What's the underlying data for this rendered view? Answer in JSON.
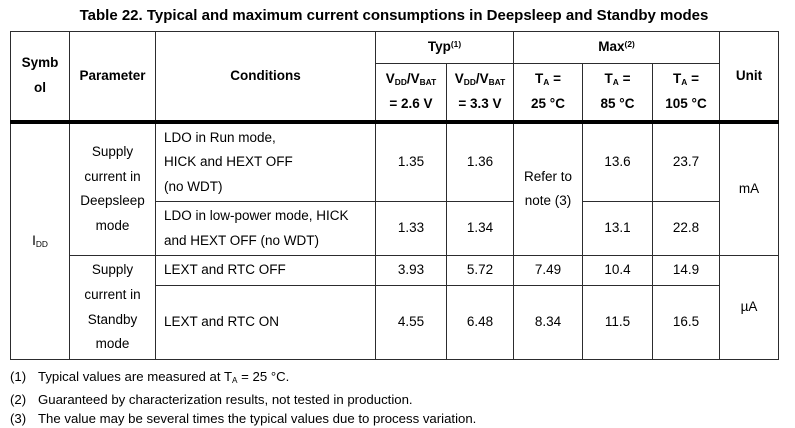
{
  "page": {
    "title": "Table 22. Typical and maximum current consumptions in Deepsleep and Standby modes"
  },
  "table": {
    "header": {
      "symbol": "Symb\nol",
      "parameter": "Parameter",
      "conditions": "Conditions",
      "typ_group": "Typ^{(1)}",
      "max_group": "Max^{(2)}",
      "unit": "Unit",
      "typ_sub": [
        "V_{DD}/V_{BAT}\n= 2.6 V",
        "V_{DD}/V_{BAT}\n= 3.3 V"
      ],
      "max_sub": [
        "T_{A} =\n25 °C",
        "T_{A} =\n85 °C",
        "T_{A} =\n105 °C"
      ]
    },
    "body": {
      "symbol": "I_{DD}",
      "deepsleep": {
        "parameter": "Supply\ncurrent in\nDeepsleep\nmode",
        "unit": "mA",
        "max_25c_note": "Refer to\nnote (3)",
        "row_run": {
          "conditions": "LDO in Run mode,\nHICK and HEXT OFF\n(no WDT)",
          "typ_2v6": "1.35",
          "typ_3v3": "1.36",
          "max_85c": "13.6",
          "max_105c": "23.7"
        },
        "row_lowpower": {
          "conditions": "LDO in low-power mode, HICK\nand HEXT OFF (no WDT)",
          "typ_2v6": "1.33",
          "typ_3v3": "1.34",
          "max_85c": "13.1",
          "max_105c": "22.8"
        }
      },
      "standby": {
        "parameter": "Supply\ncurrent in\nStandby\nmode",
        "unit": "µA",
        "row_rtc_off": {
          "conditions": "LEXT and RTC OFF",
          "typ_2v6": "3.93",
          "typ_3v3": "5.72",
          "max_25c": "7.49",
          "max_85c": "10.4",
          "max_105c": "14.9"
        },
        "row_rtc_on": {
          "conditions": "LEXT and RTC ON",
          "typ_2v6": "4.55",
          "typ_3v3": "6.48",
          "max_25c": "8.34",
          "max_85c": "11.5",
          "max_105c": "16.5"
        }
      }
    }
  },
  "footnotes": [
    {
      "num": "(1)",
      "text": "Typical values are measured at T_{A} = 25 °C."
    },
    {
      "num": "(2)",
      "text": "Guaranteed by characterization results, not tested in production."
    },
    {
      "num": "(3)",
      "text": "The value may be several times the typical values due to process variation."
    }
  ]
}
